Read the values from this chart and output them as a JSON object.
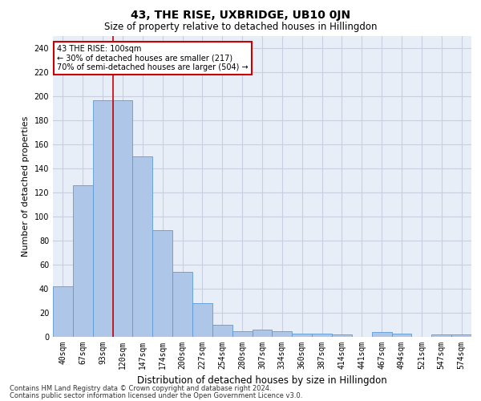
{
  "title": "43, THE RISE, UXBRIDGE, UB10 0JN",
  "subtitle": "Size of property relative to detached houses in Hillingdon",
  "xlabel": "Distribution of detached houses by size in Hillingdon",
  "ylabel": "Number of detached properties",
  "footer_line1": "Contains HM Land Registry data © Crown copyright and database right 2024.",
  "footer_line2": "Contains public sector information licensed under the Open Government Licence v3.0.",
  "bin_labels": [
    "40sqm",
    "67sqm",
    "93sqm",
    "120sqm",
    "147sqm",
    "174sqm",
    "200sqm",
    "227sqm",
    "254sqm",
    "280sqm",
    "307sqm",
    "334sqm",
    "360sqm",
    "387sqm",
    "414sqm",
    "441sqm",
    "467sqm",
    "494sqm",
    "521sqm",
    "547sqm",
    "574sqm"
  ],
  "bar_values": [
    42,
    126,
    197,
    197,
    150,
    89,
    54,
    28,
    10,
    5,
    6,
    5,
    3,
    3,
    2,
    0,
    4,
    3,
    0,
    2,
    2
  ],
  "bar_color": "#aec6e8",
  "bar_edge_color": "#5b9bd5",
  "grid_color": "#c8d0e0",
  "background_color": "#e8eef8",
  "annotation_text": "43 THE RISE: 100sqm\n← 30% of detached houses are smaller (217)\n70% of semi-detached houses are larger (504) →",
  "vline_x": 2.5,
  "ylim": [
    0,
    250
  ],
  "yticks": [
    0,
    20,
    40,
    60,
    80,
    100,
    120,
    140,
    160,
    180,
    200,
    220,
    240
  ],
  "annotation_box_color": "#ffffff",
  "annotation_box_edge": "#cc0000",
  "vline_color": "#cc0000",
  "title_fontsize": 10,
  "subtitle_fontsize": 8.5,
  "ylabel_fontsize": 8,
  "xlabel_fontsize": 8.5,
  "tick_fontsize": 7,
  "annotation_fontsize": 7,
  "footer_fontsize": 6
}
